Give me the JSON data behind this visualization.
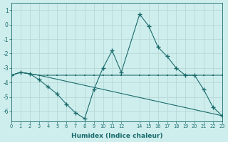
{
  "xlabel": "Humidex (Indice chaleur)",
  "background_color": "#ceeeed",
  "grid_color": "#b8d8d8",
  "line_color": "#1a6b6b",
  "xlim": [
    0,
    23
  ],
  "ylim": [
    -6.7,
    1.5
  ],
  "yticks": [
    1,
    0,
    -1,
    -2,
    -3,
    -4,
    -5,
    -6
  ],
  "xtick_positions": [
    0,
    1,
    2,
    3,
    4,
    5,
    6,
    7,
    8,
    9,
    10,
    11,
    12,
    14,
    15,
    16,
    17,
    18,
    19,
    20,
    21,
    22,
    23
  ],
  "xtick_labels": [
    "0",
    "1",
    "2",
    "3",
    "4",
    "5",
    "6",
    "7",
    "8",
    "9",
    "10",
    "11",
    "12",
    "14",
    "15",
    "16",
    "17",
    "18",
    "19",
    "20",
    "21",
    "22",
    "23"
  ],
  "line1_x": [
    0,
    1,
    2,
    3,
    4,
    5,
    6,
    7,
    8,
    9,
    10,
    11,
    12,
    14,
    15,
    16,
    17,
    18,
    21,
    22,
    23
  ],
  "line1_y": [
    -3.5,
    -3.3,
    -3.4,
    -3.5,
    -3.5,
    -3.5,
    -3.5,
    -3.5,
    -3.5,
    -3.5,
    -3.5,
    -3.5,
    -3.5,
    -3.5,
    -3.5,
    -3.5,
    -3.5,
    -3.5,
    -3.5,
    -3.5,
    -3.5
  ],
  "line2_x": [
    0,
    1,
    2,
    3,
    4,
    5,
    6,
    7,
    8,
    9,
    10,
    11,
    12,
    14,
    15,
    16,
    17,
    18,
    19,
    20,
    21,
    22,
    23
  ],
  "line2_y": [
    -3.5,
    -3.3,
    -3.4,
    -3.8,
    -4.3,
    -4.8,
    -5.5,
    -6.1,
    -6.5,
    -4.5,
    -3.0,
    -1.8,
    -3.3,
    0.72,
    -0.1,
    -1.55,
    -2.2,
    -3.0,
    -3.5,
    -3.5,
    -4.5,
    -5.7,
    -6.3
  ],
  "line3_x": [
    0,
    1,
    2,
    3,
    23
  ],
  "line3_y": [
    -3.5,
    -3.3,
    -3.4,
    -3.5,
    -6.3
  ]
}
